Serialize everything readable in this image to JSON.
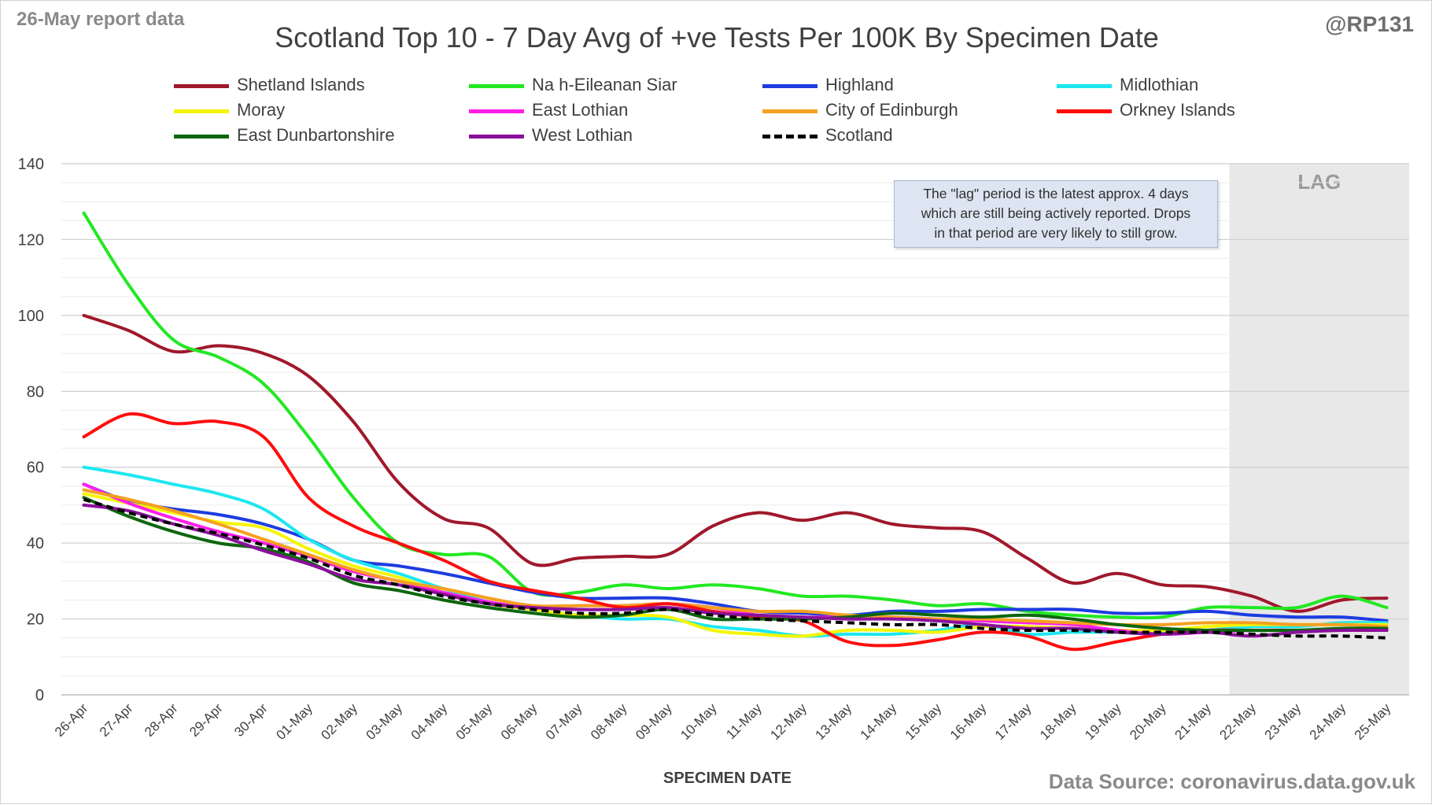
{
  "header": {
    "report_label": "26-May report data",
    "handle": "@RP131",
    "title": "Scotland Top 10 - 7 Day Avg of +ve Tests Per 100K By Specimen Date"
  },
  "footer": {
    "source": "Data Source: coronavirus.data.gov.uk"
  },
  "annotation": {
    "lag_label": "LAG",
    "note_lines": [
      "The \"lag\" period is the latest approx. 4 days",
      "which are still being actively reported.  Drops",
      "in that period are very likely to still grow."
    ]
  },
  "chart_data": {
    "type": "line",
    "title": "Scotland Top 10 - 7 Day Avg of +ve Tests Per 100K By Specimen Date",
    "xlabel": "SPECIMEN DATE",
    "ylabel": "",
    "ylim": [
      0,
      140
    ],
    "yticks": [
      0,
      20,
      40,
      60,
      80,
      100,
      120,
      140
    ],
    "grid": "horizontal, minor every 4",
    "legend_placement": "top",
    "lag_period": [
      "22-May",
      "25-May"
    ],
    "categories": [
      "26-Apr",
      "27-Apr",
      "28-Apr",
      "29-Apr",
      "30-Apr",
      "01-May",
      "02-May",
      "03-May",
      "04-May",
      "05-May",
      "06-May",
      "07-May",
      "08-May",
      "09-May",
      "10-May",
      "11-May",
      "12-May",
      "13-May",
      "14-May",
      "15-May",
      "16-May",
      "17-May",
      "18-May",
      "19-May",
      "20-May",
      "21-May",
      "22-May",
      "23-May",
      "24-May",
      "25-May"
    ],
    "series": [
      {
        "name": "Shetland Islands",
        "color": "#a0182b",
        "dash": false,
        "values": [
          100,
          96,
          90.5,
          92,
          90,
          84,
          72,
          56,
          46.5,
          44,
          34.5,
          36,
          36.5,
          37,
          44.5,
          48,
          46,
          48,
          45,
          44,
          43,
          36,
          29.5,
          32,
          29,
          28.5,
          26,
          22,
          25,
          25.5
        ]
      },
      {
        "name": "Na h-Eileanan Siar",
        "color": "#22e822",
        "dash": false,
        "values": [
          127,
          108,
          93.5,
          89,
          82,
          68,
          52,
          40,
          37,
          36.5,
          27,
          27,
          29,
          28,
          29,
          28,
          26,
          26,
          25,
          23.5,
          24,
          22,
          21,
          20.5,
          20.5,
          23,
          23,
          23,
          26,
          23
        ]
      },
      {
        "name": "Highland",
        "color": "#1d3ce0",
        "dash": false,
        "values": [
          55.5,
          51,
          49,
          47.5,
          45,
          41,
          35.5,
          34,
          32,
          29.5,
          27,
          25.5,
          25.5,
          25.5,
          24,
          22,
          21.5,
          21,
          22,
          22,
          22.5,
          22.5,
          22.5,
          21.5,
          21.5,
          22,
          21,
          20.5,
          20.5,
          19.5
        ]
      },
      {
        "name": "Midlothian",
        "color": "#1de7f0",
        "dash": false,
        "values": [
          60,
          58,
          55.5,
          53,
          49,
          41,
          35.5,
          32,
          28,
          24.5,
          22.5,
          21,
          20,
          20,
          18,
          17,
          15.5,
          16,
          16,
          17,
          18.5,
          16,
          16.5,
          16.5,
          16.5,
          17,
          18,
          18,
          19,
          19
        ]
      },
      {
        "name": "Moray",
        "color": "#f5f500",
        "dash": false,
        "values": [
          53,
          50.5,
          48,
          45.5,
          44,
          38.5,
          34,
          31,
          27,
          24,
          22.5,
          21,
          21,
          20.5,
          17,
          16,
          15.5,
          17,
          17,
          16.5,
          18,
          18,
          17.5,
          17,
          17,
          18,
          18.5,
          18.5,
          18.5,
          18.5
        ]
      },
      {
        "name": "East Lothian",
        "color": "#ff1ee8",
        "dash": false,
        "values": [
          55.5,
          50.5,
          46.5,
          43,
          40,
          36.5,
          32.5,
          30,
          27,
          24.5,
          23,
          23.5,
          23.5,
          24,
          23,
          21,
          20.5,
          20.5,
          20.5,
          20,
          19.5,
          19,
          18.5,
          17,
          16,
          16.5,
          17,
          17,
          17,
          17
        ]
      },
      {
        "name": "City of Edinburgh",
        "color": "#f5a020",
        "dash": false,
        "values": [
          54,
          51.5,
          48.5,
          45,
          41,
          37,
          33,
          30,
          28,
          25.5,
          23.5,
          23.5,
          23.5,
          24,
          23,
          22,
          22,
          21,
          20.5,
          20,
          20,
          19.5,
          19,
          18.5,
          18.5,
          19,
          19,
          18.5,
          18.5,
          18
        ]
      },
      {
        "name": "Orkney Islands",
        "color": "#ff0d0d",
        "dash": false,
        "values": [
          68,
          74,
          71.5,
          72,
          68,
          52,
          44.5,
          40,
          35.5,
          30,
          27.5,
          25.5,
          23,
          24,
          22,
          20.5,
          19.5,
          14,
          13,
          14.5,
          16.5,
          15.5,
          12,
          14,
          16,
          17,
          17,
          17,
          17,
          17
        ]
      },
      {
        "name": "East Dunbartonshire",
        "color": "#0d660d",
        "dash": false,
        "values": [
          52,
          47,
          43,
          40,
          38.5,
          35,
          29.5,
          27.5,
          25,
          23,
          21.5,
          20.5,
          21,
          22.5,
          20,
          20,
          20,
          20.5,
          21.5,
          21,
          20.5,
          21,
          20,
          18.5,
          17.5,
          17,
          17,
          17,
          17.5,
          17.5
        ]
      },
      {
        "name": "West Lothian",
        "color": "#8b0f9c",
        "dash": false,
        "values": [
          50,
          48.5,
          45,
          42,
          38,
          34.5,
          30.5,
          29,
          26.5,
          24,
          23,
          22.5,
          22.5,
          23,
          21.5,
          21,
          20.5,
          20,
          20,
          19.5,
          18.5,
          17.5,
          17.5,
          16.5,
          16,
          16.5,
          15.5,
          16.5,
          17,
          17
        ]
      },
      {
        "name": "Scotland",
        "color": "#000000",
        "dash": true,
        "values": [
          51.5,
          48,
          45,
          42.5,
          39.5,
          36,
          31.5,
          29,
          26,
          24,
          22.5,
          21.5,
          21.5,
          22.5,
          21,
          20,
          19.5,
          19,
          18.5,
          18.5,
          17.5,
          17,
          17,
          16.5,
          16.5,
          16.5,
          16,
          15.5,
          15.5,
          15
        ]
      }
    ]
  }
}
